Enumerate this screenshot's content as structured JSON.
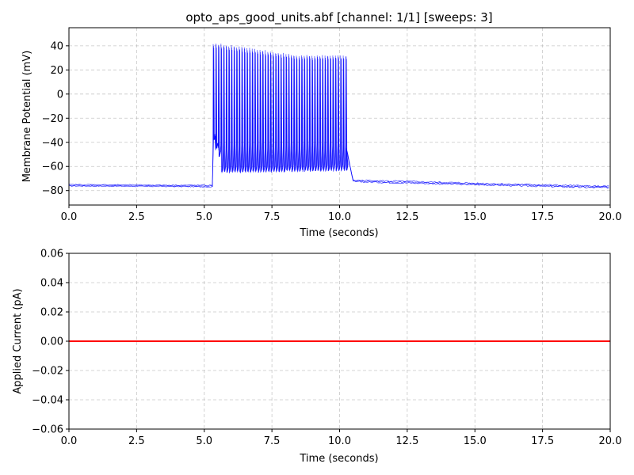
{
  "chart_data": [
    {
      "type": "line",
      "title": "opto_aps_good_units.abf [channel: 1/1] [sweeps: 3]",
      "xlabel": "Time (seconds)",
      "ylabel": "Membrane Potential (mV)",
      "xlim": [
        0,
        20
      ],
      "ylim": [
        -92,
        55
      ],
      "xticks": [
        0.0,
        2.5,
        5.0,
        7.5,
        10.0,
        12.5,
        15.0,
        17.5,
        20.0
      ],
      "xtick_labels": [
        "0.0",
        "2.5",
        "5.0",
        "7.5",
        "10.0",
        "12.5",
        "15.0",
        "17.5",
        "20.0"
      ],
      "yticks": [
        40,
        20,
        0,
        -20,
        -40,
        -60,
        -80
      ],
      "ytick_labels": [
        "40",
        "20",
        "0",
        "−20",
        "−40",
        "−60",
        "−80"
      ],
      "grid": true,
      "color": "#0000ff",
      "sweeps": 3,
      "description_points": {
        "baseline_mV": -76,
        "stim_onset_s": 5.3,
        "stim_offset_s": 10.25,
        "spike_peak_start_mV": 42,
        "spike_peak_end_mV": 32,
        "spike_trough_start_mV": -38,
        "spike_trough_mid_mV": -65,
        "post_stim_mV": -72,
        "end_mV": -77
      }
    },
    {
      "type": "line",
      "title": "",
      "xlabel": "Time (seconds)",
      "ylabel": "Applied Current (pA)",
      "xlim": [
        0,
        20
      ],
      "ylim": [
        -0.06,
        0.06
      ],
      "xticks": [
        0.0,
        2.5,
        5.0,
        7.5,
        10.0,
        12.5,
        15.0,
        17.5,
        20.0
      ],
      "xtick_labels": [
        "0.0",
        "2.5",
        "5.0",
        "7.5",
        "10.0",
        "12.5",
        "15.0",
        "17.5",
        "20.0"
      ],
      "yticks": [
        0.06,
        0.04,
        0.02,
        0.0,
        -0.02,
        -0.04,
        -0.06
      ],
      "ytick_labels": [
        "0.06",
        "0.04",
        "0.02",
        "0.00",
        "−0.02",
        "−0.04",
        "−0.06"
      ],
      "grid": true,
      "color": "#ff0000",
      "series": [
        {
          "x": [
            0,
            20
          ],
          "y": [
            0,
            0
          ]
        }
      ]
    }
  ]
}
